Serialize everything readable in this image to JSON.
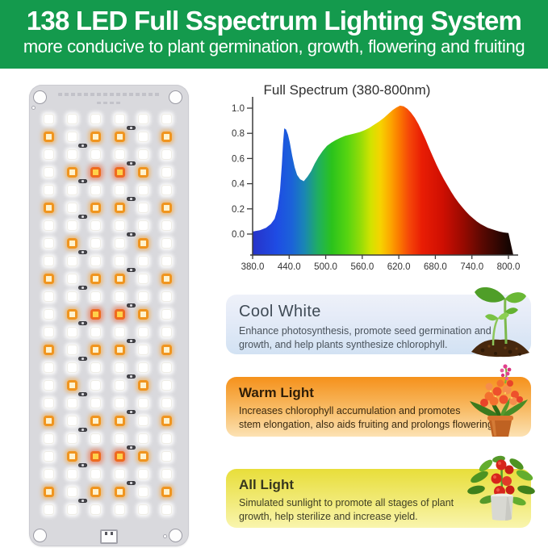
{
  "header": {
    "title": "138 LED Full Sspectrum Lighting System",
    "subtitle": "more conducive to plant germination, growth, flowering and fruiting",
    "bg_color": "#149a4d",
    "text_color": "#ffffff"
  },
  "led_panel": {
    "columns": 6,
    "rows": 23,
    "row_patterns": [
      "wwwwww",
      "owoowo",
      "wwwwww",
      "worrow",
      "wwwwww",
      "owoowo",
      "wwwwww",
      "wowwow",
      "wwwwww",
      "owoowo",
      "wwwwww",
      "worrow",
      "wwwwww",
      "owoowo",
      "wwwwww",
      "wowwow",
      "wwwwww",
      "owoowo",
      "wwwwww",
      "worrow",
      "wwwwww",
      "owoowo",
      "wwwwww"
    ],
    "legend": {
      "w": "white-led",
      "o": "warm-orange-led",
      "r": "deep-orange-red-led"
    },
    "colors": {
      "panel": "#d9d9dd",
      "orange": "#f0951f",
      "hot": "#ef6a1f",
      "white": "#ffffff"
    }
  },
  "chart_data": {
    "type": "area",
    "title": "Full Spectrum (380-800nm)",
    "xlabel": "",
    "ylabel": "",
    "xlim": [
      380,
      800
    ],
    "ylim": [
      0,
      1.05
    ],
    "grid": false,
    "x_ticks": [
      380,
      440,
      500,
      560,
      620,
      680,
      740,
      800
    ],
    "x_tick_labels": [
      "380.0",
      "440.0",
      "500.0",
      "560.0",
      "620.0",
      "680.0",
      "740.0",
      "800.0"
    ],
    "y_ticks": [
      0.0,
      0.2,
      0.4,
      0.6,
      0.8,
      1.0
    ],
    "y_tick_labels": [
      "0.0",
      "0.2",
      "0.4",
      "0.6",
      "0.8",
      "1.0"
    ],
    "series": [
      {
        "name": "relative spectral intensity",
        "points": [
          [
            380,
            0.02
          ],
          [
            392,
            0.03
          ],
          [
            402,
            0.05
          ],
          [
            410,
            0.08
          ],
          [
            416,
            0.12
          ],
          [
            421,
            0.2
          ],
          [
            425,
            0.35
          ],
          [
            428,
            0.55
          ],
          [
            430,
            0.72
          ],
          [
            432,
            0.84
          ],
          [
            435,
            0.83
          ],
          [
            438,
            0.79
          ],
          [
            441,
            0.73
          ],
          [
            445,
            0.62
          ],
          [
            449,
            0.53
          ],
          [
            453,
            0.47
          ],
          [
            458,
            0.435
          ],
          [
            464,
            0.42
          ],
          [
            470,
            0.455
          ],
          [
            476,
            0.5
          ],
          [
            482,
            0.56
          ],
          [
            488,
            0.61
          ],
          [
            495,
            0.66
          ],
          [
            502,
            0.7
          ],
          [
            509,
            0.725
          ],
          [
            516,
            0.745
          ],
          [
            524,
            0.765
          ],
          [
            532,
            0.78
          ],
          [
            540,
            0.79
          ],
          [
            548,
            0.8
          ],
          [
            556,
            0.81
          ],
          [
            564,
            0.825
          ],
          [
            572,
            0.845
          ],
          [
            580,
            0.87
          ],
          [
            588,
            0.895
          ],
          [
            596,
            0.925
          ],
          [
            604,
            0.96
          ],
          [
            610,
            0.985
          ],
          [
            616,
            1.005
          ],
          [
            622,
            1.02
          ],
          [
            628,
            1.015
          ],
          [
            634,
            0.995
          ],
          [
            640,
            0.965
          ],
          [
            646,
            0.925
          ],
          [
            652,
            0.875
          ],
          [
            658,
            0.815
          ],
          [
            664,
            0.75
          ],
          [
            670,
            0.68
          ],
          [
            676,
            0.615
          ],
          [
            682,
            0.55
          ],
          [
            688,
            0.49
          ],
          [
            694,
            0.435
          ],
          [
            700,
            0.385
          ],
          [
            706,
            0.335
          ],
          [
            712,
            0.29
          ],
          [
            718,
            0.25
          ],
          [
            724,
            0.215
          ],
          [
            730,
            0.18
          ],
          [
            736,
            0.15
          ],
          [
            742,
            0.125
          ],
          [
            748,
            0.1
          ],
          [
            754,
            0.08
          ],
          [
            760,
            0.065
          ],
          [
            766,
            0.05
          ],
          [
            772,
            0.04
          ],
          [
            778,
            0.03
          ],
          [
            785,
            0.02
          ],
          [
            792,
            0.013
          ],
          [
            800,
            0.008
          ]
        ]
      }
    ],
    "gradient_stops": [
      [
        380,
        "#2733c9"
      ],
      [
        420,
        "#1e4ce4"
      ],
      [
        445,
        "#1b63d8"
      ],
      [
        465,
        "#1a86b4"
      ],
      [
        487,
        "#1fae62"
      ],
      [
        510,
        "#2bc31c"
      ],
      [
        535,
        "#55d411"
      ],
      [
        557,
        "#93dc08"
      ],
      [
        574,
        "#d2e300"
      ],
      [
        590,
        "#f6d300"
      ],
      [
        605,
        "#fcaa00"
      ],
      [
        620,
        "#fb7b00"
      ],
      [
        637,
        "#f54708"
      ],
      [
        658,
        "#e91d04"
      ],
      [
        692,
        "#cf0f02"
      ],
      [
        725,
        "#990a01"
      ],
      [
        758,
        "#580902"
      ],
      [
        800,
        "#170502"
      ]
    ],
    "legend_position": "none"
  },
  "cards": [
    {
      "title": "Cool White",
      "lines": [
        "Enhance photosynthesis, promote seed germination and",
        "growth, and help plants synthesize chlorophyll."
      ],
      "accent": "#d2e2f3"
    },
    {
      "title": "Warm Light",
      "lines": [
        "Increases chlorophyll accumulation and promotes",
        "stem elongation, also aids fruiting and prolongs flowering."
      ],
      "accent": "#f5911b"
    },
    {
      "title": "All Light",
      "lines": [
        "Simulated sunlight to promote all stages of plant",
        "growth, help sterilize and increase yield."
      ],
      "accent": "#e8de3a"
    }
  ]
}
